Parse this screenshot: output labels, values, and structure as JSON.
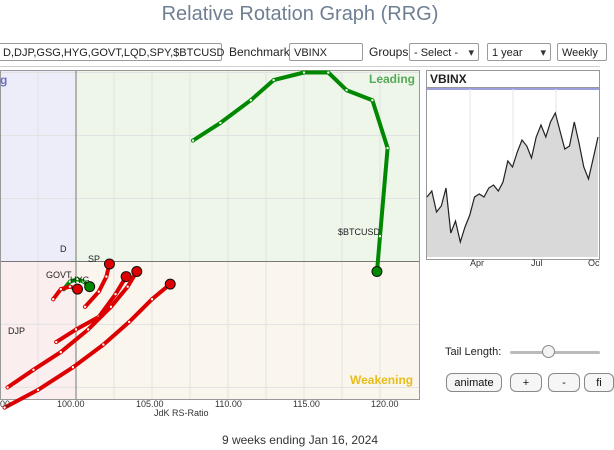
{
  "app": {
    "title": "Relative Rotation Graph (RRG)"
  },
  "toolbar": {
    "symbols_value": "D,DJP,GSG,HYG,GOVT,LQD,SPY,$BTCUSD",
    "benchmark_label": "Benchmark:",
    "benchmark_value": "VBINX",
    "groups_label": "Groups:",
    "groups_value": "- Select -",
    "period_value": "1 year",
    "frequency_value": "Weekly"
  },
  "rrg": {
    "quadrants": {
      "leading": "Leading",
      "weakening": "Weakening",
      "improving_partial": "g"
    },
    "x_axis_label": "JdK RS-Ratio",
    "x_ticks": [
      "00",
      "100.00",
      "105.00",
      "110.00",
      "115.00",
      "120.00"
    ],
    "point_labels": [
      "$BTCUSD",
      "GOVT",
      "HYG",
      "SP",
      "DJP",
      "D"
    ]
  },
  "chart_data": {
    "type": "scatter",
    "xlabel": "JdK RS-Ratio",
    "ylabel": "",
    "x_ticks": [
      95,
      100,
      105,
      110,
      115,
      120
    ],
    "xlim": [
      95,
      122.5
    ],
    "series": [
      {
        "name": "$BTCUSD",
        "color": "#008800",
        "points": [
          [
            107.7,
            104.8
          ],
          [
            109.5,
            105.5
          ],
          [
            111.5,
            106.4
          ],
          [
            113.0,
            107.2
          ],
          [
            115.0,
            107.5
          ],
          [
            116.6,
            107.5
          ],
          [
            117.8,
            106.8
          ],
          [
            119.5,
            106.4
          ],
          [
            120.5,
            104.5
          ],
          [
            120.0,
            101.0
          ],
          [
            119.8,
            99.6
          ]
        ]
      },
      {
        "name": "SPY",
        "color": "#008800",
        "points": [
          [
            99.2,
            98.9
          ],
          [
            99.6,
            99.2
          ],
          [
            100.1,
            99.3
          ],
          [
            100.5,
            99.2
          ],
          [
            100.9,
            99.0
          ]
        ]
      },
      {
        "name": "LQD",
        "color": "#dd0000",
        "points": [
          [
            98.5,
            98.5
          ],
          [
            99.0,
            98.9
          ],
          [
            99.6,
            99.0
          ],
          [
            100.1,
            98.9
          ]
        ]
      },
      {
        "name": "GOVT",
        "color": "#dd0000",
        "points": [
          [
            100.6,
            98.2
          ],
          [
            101.5,
            98.8
          ],
          [
            102.0,
            99.4
          ],
          [
            102.2,
            99.9
          ]
        ]
      },
      {
        "name": "HYG",
        "color": "#dd0000",
        "points": [
          [
            98.7,
            96.8
          ],
          [
            100.0,
            97.3
          ],
          [
            101.5,
            97.8
          ],
          [
            102.6,
            98.7
          ],
          [
            103.3,
            99.4
          ]
        ]
      },
      {
        "name": "DJP",
        "color": "#dd0000",
        "points": [
          [
            95.5,
            95.0
          ],
          [
            97.2,
            95.7
          ],
          [
            99.0,
            96.4
          ],
          [
            100.8,
            97.3
          ],
          [
            102.3,
            98.2
          ],
          [
            103.4,
            99.0
          ],
          [
            104.0,
            99.6
          ]
        ]
      },
      {
        "name": "GSG",
        "color": "#dd0000",
        "points": [
          [
            95.3,
            94.2
          ],
          [
            97.5,
            94.9
          ],
          [
            99.8,
            95.8
          ],
          [
            101.8,
            96.7
          ],
          [
            103.5,
            97.6
          ],
          [
            105.0,
            98.5
          ],
          [
            106.2,
            99.1
          ]
        ]
      }
    ]
  },
  "side_chart": {
    "title": "VBINX",
    "x_ticks": [
      "Apr",
      "Jul",
      "Oc"
    ],
    "values": [
      60,
      62,
      55,
      57,
      63,
      48,
      52,
      45,
      50,
      54,
      60,
      61,
      60,
      63,
      64,
      62,
      65,
      72,
      70,
      75,
      79,
      77,
      73,
      80,
      84,
      80,
      85,
      88,
      82,
      76,
      77,
      85,
      78,
      70,
      66,
      73,
      80
    ]
  },
  "controls": {
    "tail_label": "Tail Length:",
    "tail_value": 5,
    "animate_label": "animate",
    "plus_label": "+",
    "minus_label": "-",
    "f_label": "fi"
  },
  "status": {
    "footer_text": "9 weeks ending Jan 16, 2024"
  },
  "colors": {
    "leading_bg": "#eef6ea",
    "weakening_bg": "#faf6ee",
    "improving_bg": "#ecedf8",
    "leading_text": "#55aa55",
    "weakening_text": "#e8bd1a",
    "green_tail": "#008800",
    "red_tail": "#dd0000"
  }
}
